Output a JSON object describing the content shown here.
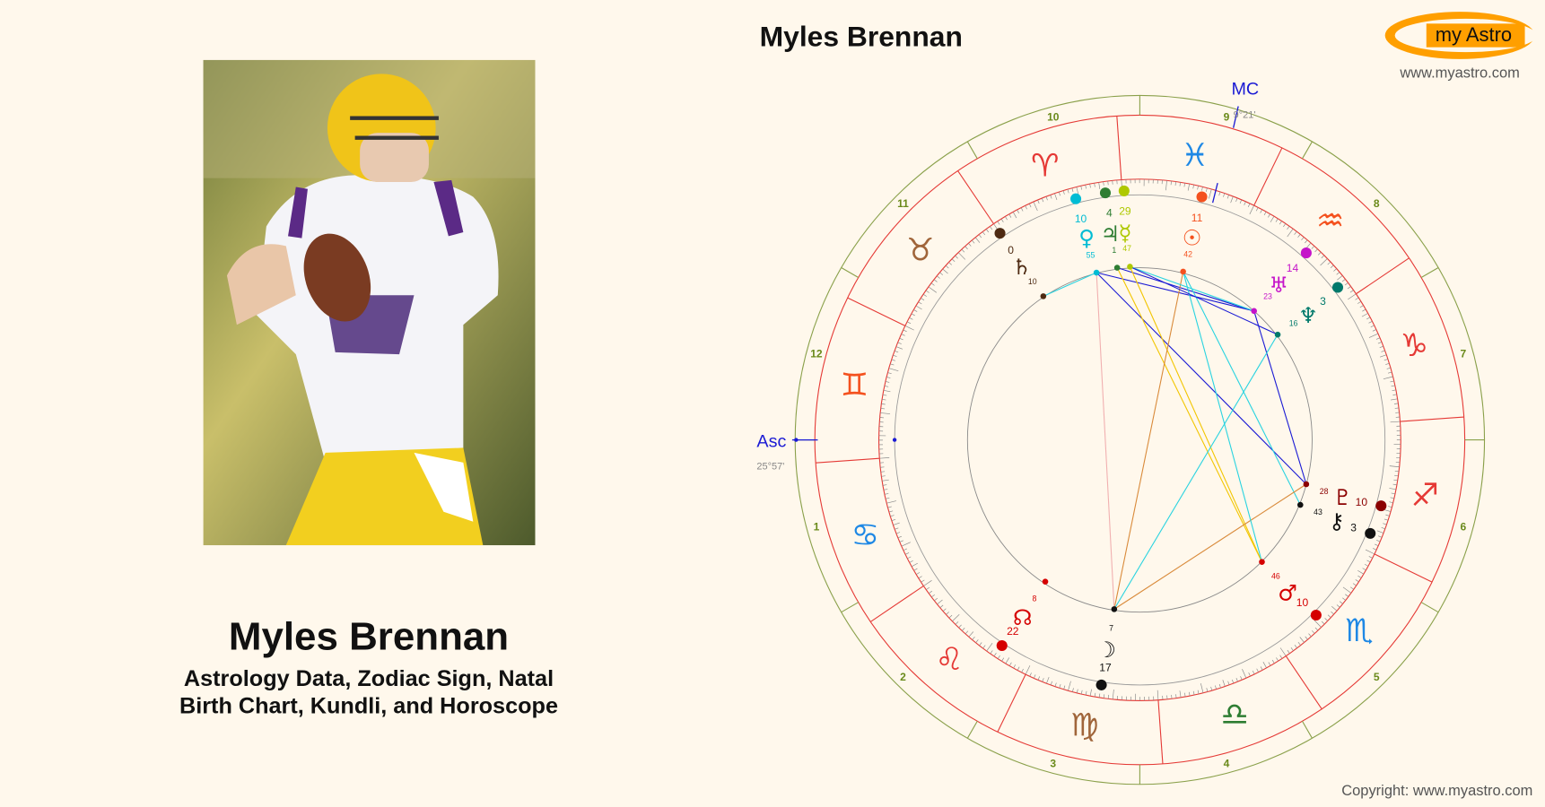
{
  "header": {
    "title": "Myles Brennan",
    "logo": "my Astro",
    "site": "www.myastro.com"
  },
  "profile": {
    "name": "Myles Brennan",
    "subtitle_lines": [
      "Astrology Data, Zodiac Sign, Natal",
      "Birth Chart, Kundli, and Horoscope"
    ]
  },
  "wheel": {
    "asc_label": "Asc",
    "asc_degree": "25°57'",
    "mc_label": "MC",
    "mc_degree": "9°21'",
    "house_numbers": [
      "1",
      "2",
      "3",
      "4",
      "5",
      "6",
      "7",
      "8",
      "9",
      "10",
      "11",
      "12"
    ],
    "signs": [
      "♈",
      "♉",
      "♊",
      "♋",
      "♌",
      "♍",
      "♎",
      "♏",
      "♐",
      "♑",
      "♒",
      "♓"
    ],
    "planets": [
      {
        "glyph": "♀",
        "degree": 10,
        "minute": 55
      },
      {
        "glyph": "♃",
        "degree": 4,
        "minute": 1
      },
      {
        "glyph": "☿",
        "degree": 29,
        "minute": 47
      },
      {
        "glyph": "☉",
        "degree": 11,
        "minute": 42
      },
      {
        "glyph": "♅",
        "degree": 14,
        "minute": 23
      },
      {
        "glyph": "♆",
        "degree": 3,
        "minute": 16
      },
      {
        "glyph": "♇",
        "degree": 10,
        "minute": 28
      },
      {
        "glyph": "⚷",
        "degree": 3,
        "minute": 43
      },
      {
        "glyph": "♂",
        "degree": 10,
        "minute": 46
      },
      {
        "glyph": "☽",
        "degree": 17,
        "minute": 7
      },
      {
        "glyph": "☊",
        "degree": 22,
        "minute": 8
      },
      {
        "glyph": "♄",
        "degree": 0,
        "minute": 10
      }
    ]
  },
  "footer": {
    "copyright": "Copyright: www.myastro.com"
  }
}
